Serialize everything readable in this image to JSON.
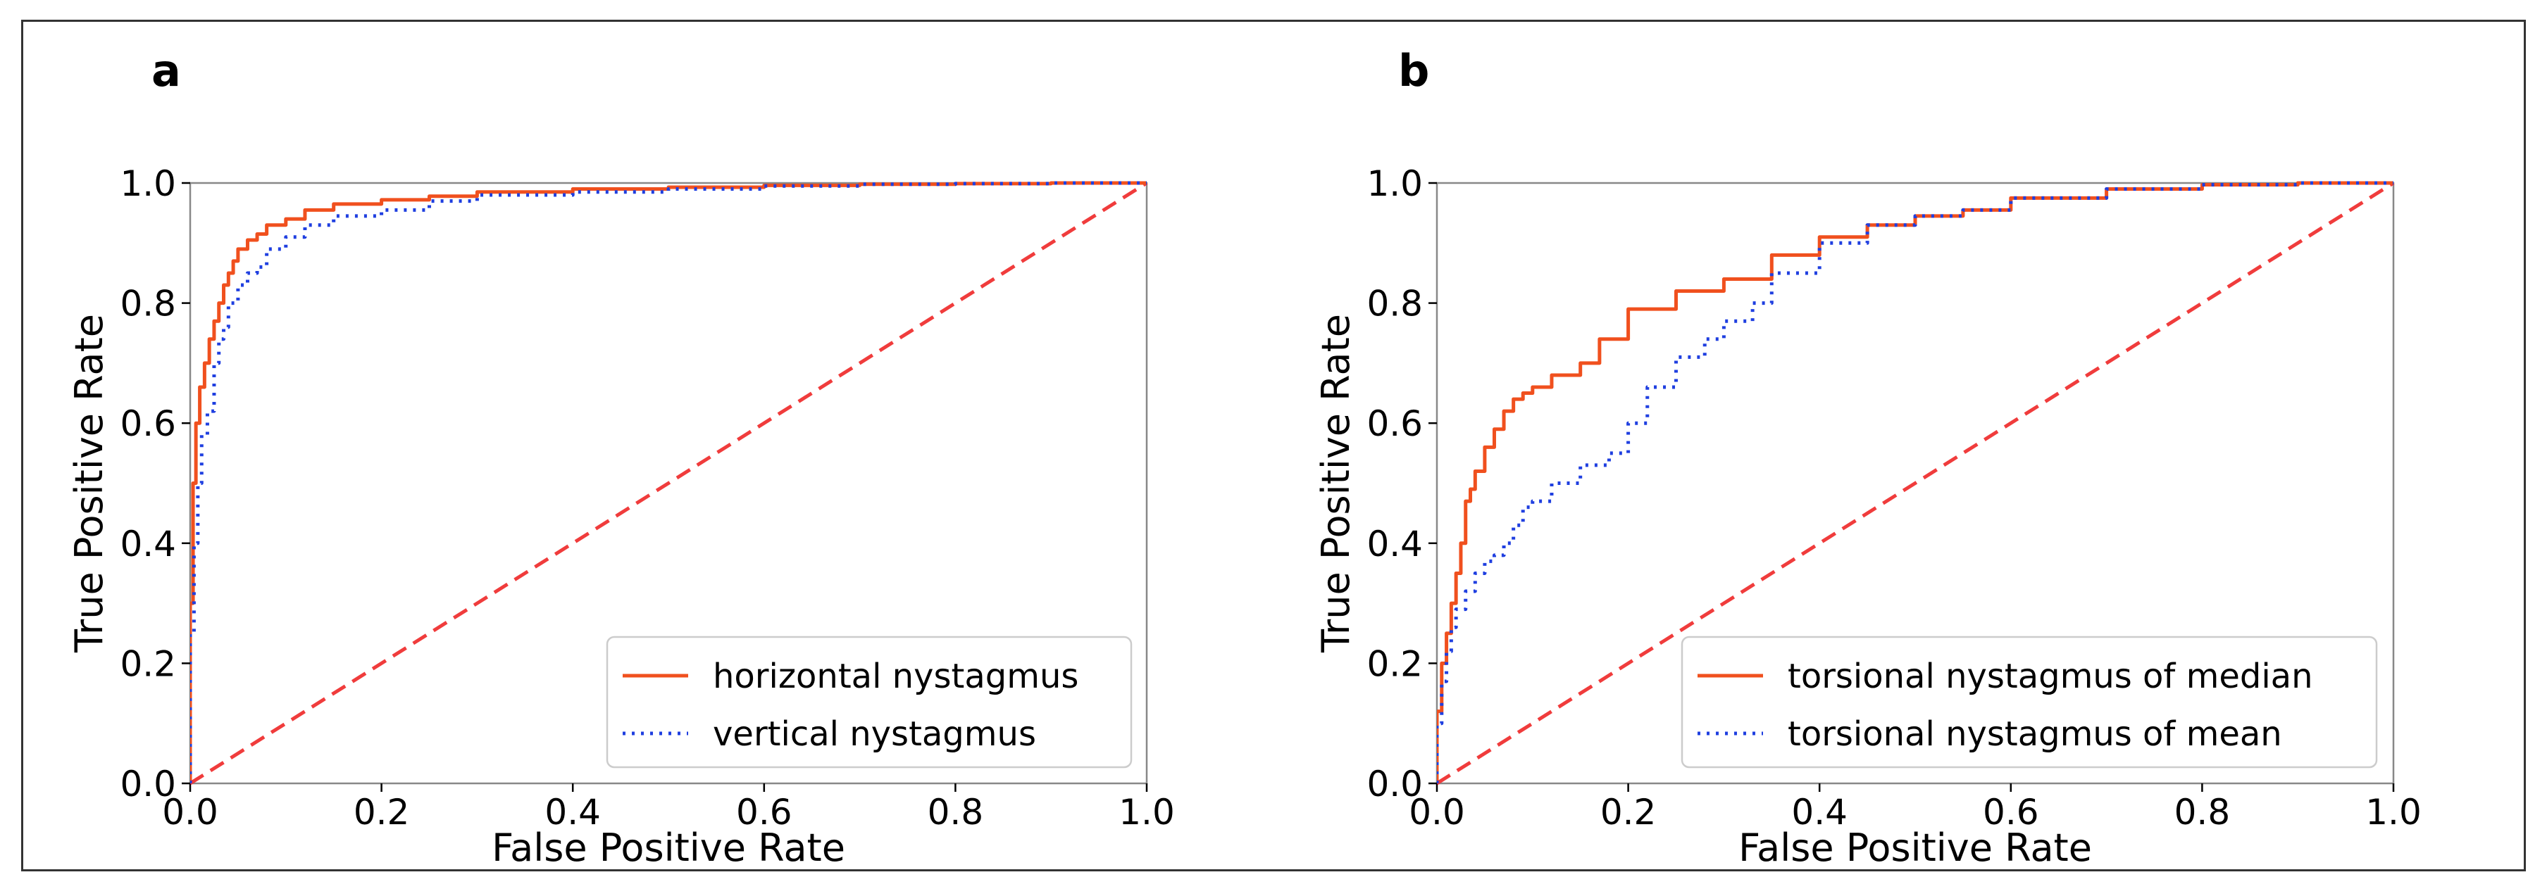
{
  "figure": {
    "panels": [
      "a",
      "b"
    ]
  },
  "colors": {
    "roc_solid": "#f0501e",
    "roc_dotted": "#1f3fe0",
    "chance": "#f03c3c"
  },
  "chart_data": [
    {
      "type": "line",
      "panel_label": "a",
      "title": "",
      "xlabel": "False Positive Rate",
      "ylabel": "True Positive Rate",
      "xlim": [
        0.0,
        1.0
      ],
      "ylim": [
        0.0,
        1.0
      ],
      "xticks": [
        "0.0",
        "0.2",
        "0.4",
        "0.6",
        "0.8",
        "1.0"
      ],
      "yticks": [
        "0.0",
        "0.2",
        "0.4",
        "0.6",
        "0.8",
        "1.0"
      ],
      "grid": false,
      "legend_position": "lower-right",
      "series": [
        {
          "name": "horizontal nystagmus",
          "style": "solid",
          "x": [
            0.0,
            0.003,
            0.006,
            0.01,
            0.015,
            0.02,
            0.025,
            0.03,
            0.035,
            0.04,
            0.045,
            0.05,
            0.06,
            0.07,
            0.08,
            0.1,
            0.12,
            0.15,
            0.2,
            0.25,
            0.3,
            0.4,
            0.5,
            0.6,
            0.7,
            0.8,
            0.9,
            1.0
          ],
          "y": [
            0.0,
            0.3,
            0.5,
            0.6,
            0.66,
            0.7,
            0.74,
            0.77,
            0.8,
            0.83,
            0.85,
            0.87,
            0.89,
            0.905,
            0.915,
            0.93,
            0.94,
            0.955,
            0.965,
            0.972,
            0.978,
            0.985,
            0.99,
            0.993,
            0.996,
            0.998,
            0.999,
            1.0
          ]
        },
        {
          "name": "vertical nystagmus",
          "style": "dotted",
          "x": [
            0.0,
            0.004,
            0.008,
            0.012,
            0.018,
            0.025,
            0.03,
            0.035,
            0.04,
            0.05,
            0.06,
            0.07,
            0.08,
            0.1,
            0.12,
            0.15,
            0.2,
            0.25,
            0.3,
            0.4,
            0.5,
            0.6,
            0.7,
            0.8,
            0.9,
            1.0
          ],
          "y": [
            0.0,
            0.25,
            0.4,
            0.5,
            0.58,
            0.62,
            0.7,
            0.74,
            0.76,
            0.8,
            0.83,
            0.85,
            0.86,
            0.89,
            0.91,
            0.93,
            0.945,
            0.955,
            0.97,
            0.98,
            0.985,
            0.99,
            0.995,
            0.998,
            0.999,
            1.0
          ]
        },
        {
          "name": "chance",
          "style": "dashed",
          "x": [
            0.0,
            1.0
          ],
          "y": [
            0.0,
            1.0
          ]
        }
      ],
      "legend_entries": [
        "horizontal nystagmus",
        "vertical nystagmus"
      ]
    },
    {
      "type": "line",
      "panel_label": "b",
      "title": "",
      "xlabel": "False Positive Rate",
      "ylabel": "True Positive Rate",
      "xlim": [
        0.0,
        1.0
      ],
      "ylim": [
        0.0,
        1.0
      ],
      "xticks": [
        "0.0",
        "0.2",
        "0.4",
        "0.6",
        "0.8",
        "1.0"
      ],
      "yticks": [
        "0.0",
        "0.2",
        "0.4",
        "0.6",
        "0.8",
        "1.0"
      ],
      "grid": false,
      "legend_position": "lower-right",
      "series": [
        {
          "name": "torsional nystagmus of median",
          "style": "solid",
          "x": [
            0.0,
            0.005,
            0.01,
            0.015,
            0.02,
            0.025,
            0.03,
            0.035,
            0.04,
            0.05,
            0.06,
            0.07,
            0.08,
            0.09,
            0.1,
            0.12,
            0.15,
            0.17,
            0.2,
            0.25,
            0.3,
            0.35,
            0.4,
            0.45,
            0.5,
            0.55,
            0.6,
            0.7,
            0.8,
            0.9,
            1.0
          ],
          "y": [
            0.0,
            0.12,
            0.2,
            0.25,
            0.3,
            0.35,
            0.4,
            0.47,
            0.49,
            0.52,
            0.56,
            0.59,
            0.62,
            0.64,
            0.65,
            0.66,
            0.68,
            0.7,
            0.74,
            0.79,
            0.82,
            0.84,
            0.88,
            0.91,
            0.93,
            0.945,
            0.955,
            0.975,
            0.99,
            0.997,
            1.0
          ]
        },
        {
          "name": "torsional nystagmus of mean",
          "style": "dotted",
          "x": [
            0.0,
            0.005,
            0.01,
            0.015,
            0.02,
            0.03,
            0.04,
            0.05,
            0.06,
            0.07,
            0.08,
            0.09,
            0.1,
            0.12,
            0.15,
            0.18,
            0.2,
            0.22,
            0.25,
            0.28,
            0.3,
            0.33,
            0.35,
            0.4,
            0.45,
            0.5,
            0.55,
            0.6,
            0.7,
            0.8,
            0.9,
            1.0
          ],
          "y": [
            0.0,
            0.1,
            0.17,
            0.22,
            0.26,
            0.29,
            0.32,
            0.35,
            0.37,
            0.38,
            0.4,
            0.43,
            0.46,
            0.47,
            0.5,
            0.53,
            0.55,
            0.6,
            0.66,
            0.71,
            0.74,
            0.77,
            0.8,
            0.85,
            0.9,
            0.93,
            0.945,
            0.955,
            0.975,
            0.99,
            0.997,
            1.0
          ]
        },
        {
          "name": "chance",
          "style": "dashed",
          "x": [
            0.0,
            1.0
          ],
          "y": [
            0.0,
            1.0
          ]
        }
      ],
      "legend_entries": [
        "torsional nystagmus of median",
        "torsional nystagmus of mean"
      ]
    }
  ]
}
